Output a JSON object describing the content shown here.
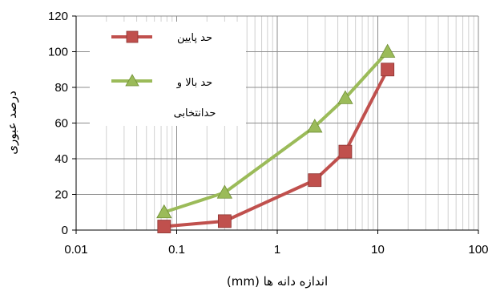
{
  "chart_data": {
    "type": "line",
    "xscale": "log",
    "xlim": [
      0.01,
      100
    ],
    "ylim": [
      0,
      120
    ],
    "x_ticks": [
      "0.01",
      "0.1",
      "1",
      "10",
      "100"
    ],
    "y_ticks": [
      "0",
      "20",
      "40",
      "60",
      "80",
      "100",
      "120"
    ],
    "xlabel": "اندازه دانه ها (mm)",
    "ylabel": "درصد عبوری",
    "grid": true,
    "legend_position": "top-left",
    "series": [
      {
        "name": "حد پایین",
        "color": "#c0504d",
        "marker": "square",
        "x": [
          0.075,
          0.3,
          2.36,
          4.75,
          12.5
        ],
        "y": [
          2,
          5,
          28,
          44,
          90
        ]
      },
      {
        "name": "حد بالا و حدانتخابی",
        "color": "#9bbb59",
        "marker": "triangle",
        "x": [
          0.075,
          0.3,
          2.36,
          4.75,
          12.5
        ],
        "y": [
          10,
          21,
          58,
          74,
          100
        ]
      }
    ],
    "legend": {
      "line1": "حد پایین",
      "line2": "حد بالا و",
      "line3": "حدانتخابی"
    }
  }
}
